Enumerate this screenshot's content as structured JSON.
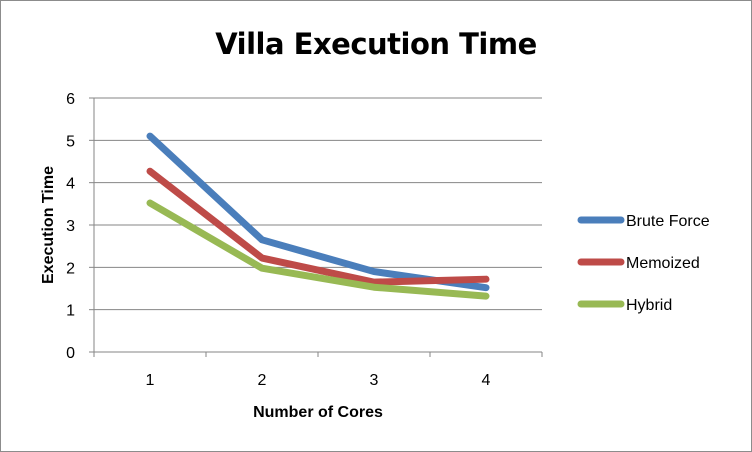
{
  "chart_data": {
    "type": "line",
    "title": "Villa Execution Time",
    "xlabel": "Number of Cores",
    "ylabel": "Execution Time",
    "categories": [
      "1",
      "2",
      "3",
      "4"
    ],
    "ylim": [
      0,
      6
    ],
    "yticks": [
      "0",
      "1",
      "2",
      "3",
      "4",
      "5",
      "6"
    ],
    "grid": true,
    "legend_position": "right",
    "series": [
      {
        "name": "Brute Force",
        "color": "#4a7ebb",
        "values": [
          5.1,
          2.65,
          1.9,
          1.52
        ]
      },
      {
        "name": "Memoized",
        "color": "#be4b48",
        "values": [
          4.27,
          2.22,
          1.65,
          1.72
        ]
      },
      {
        "name": "Hybrid",
        "color": "#98b954",
        "values": [
          3.52,
          1.98,
          1.53,
          1.32
        ]
      }
    ]
  }
}
